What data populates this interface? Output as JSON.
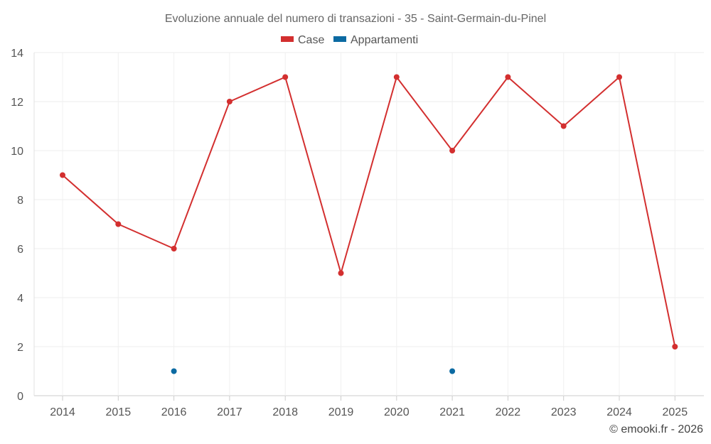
{
  "chart_data": {
    "type": "line",
    "title": "Evoluzione annuale del numero di transazioni - 35 - Saint-Germain-du-Pinel",
    "categories": [
      "2014",
      "2015",
      "2016",
      "2017",
      "2018",
      "2019",
      "2020",
      "2021",
      "2022",
      "2023",
      "2024",
      "2025"
    ],
    "series": [
      {
        "name": "Case",
        "color": "#d32f2f",
        "values": [
          9,
          7,
          6,
          12,
          13,
          5,
          13,
          10,
          13,
          11,
          13,
          2
        ]
      },
      {
        "name": "Appartamenti",
        "color": "#0b6aa2",
        "values": [
          null,
          null,
          1,
          null,
          null,
          null,
          null,
          1,
          null,
          null,
          null,
          null
        ]
      }
    ],
    "ylim": [
      0,
      14
    ],
    "yticks": [
      0,
      2,
      4,
      6,
      8,
      10,
      12,
      14
    ],
    "grid": true,
    "legend": "top-center",
    "xlabel": "",
    "ylabel": ""
  },
  "credit": "© emooki.fr - 2026"
}
